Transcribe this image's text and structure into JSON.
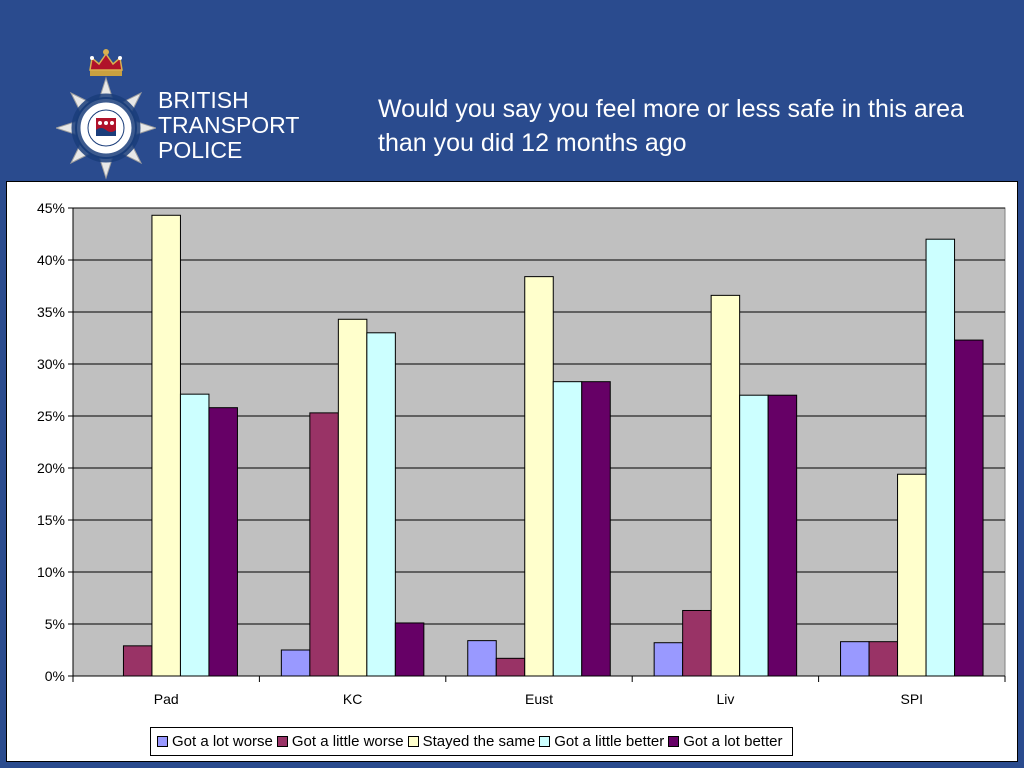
{
  "header": {
    "org_name_lines": [
      "BRITISH",
      "TRANSPORT",
      "POLICE"
    ],
    "badge_text": "BRITISH TRANSPORT POLICE",
    "title": "Would you say you feel more or less safe in this area than you did 12 months ago"
  },
  "colors": {
    "background": "#2a4b8e",
    "plot_area": "#c0c0c0",
    "series": [
      "#9999ff",
      "#993366",
      "#ffffcc",
      "#ccffff",
      "#660066"
    ]
  },
  "chart_data": {
    "type": "bar",
    "title": "",
    "xlabel": "",
    "ylabel": "",
    "ylim": [
      0,
      45
    ],
    "y_ticks": [
      "0%",
      "5%",
      "10%",
      "15%",
      "20%",
      "25%",
      "30%",
      "35%",
      "40%",
      "45%"
    ],
    "y_tick_values": [
      0,
      5,
      10,
      15,
      20,
      25,
      30,
      35,
      40,
      45
    ],
    "grid": true,
    "legend_position": "bottom",
    "categories": [
      "Pad",
      "KC",
      "Eust",
      "Liv",
      "SPI"
    ],
    "series": [
      {
        "name": "Got a lot worse",
        "values": [
          0,
          2.5,
          3.4,
          3.2,
          3.3
        ]
      },
      {
        "name": "Got a little worse",
        "values": [
          2.9,
          25.3,
          1.7,
          6.3,
          3.3
        ]
      },
      {
        "name": "Stayed the same",
        "values": [
          44.3,
          34.3,
          38.4,
          36.6,
          19.4
        ]
      },
      {
        "name": "Got a little better",
        "values": [
          27.1,
          33.0,
          28.3,
          27.0,
          42.0
        ]
      },
      {
        "name": "Got a lot better",
        "values": [
          25.8,
          5.1,
          28.3,
          27.0,
          32.3
        ]
      }
    ]
  }
}
